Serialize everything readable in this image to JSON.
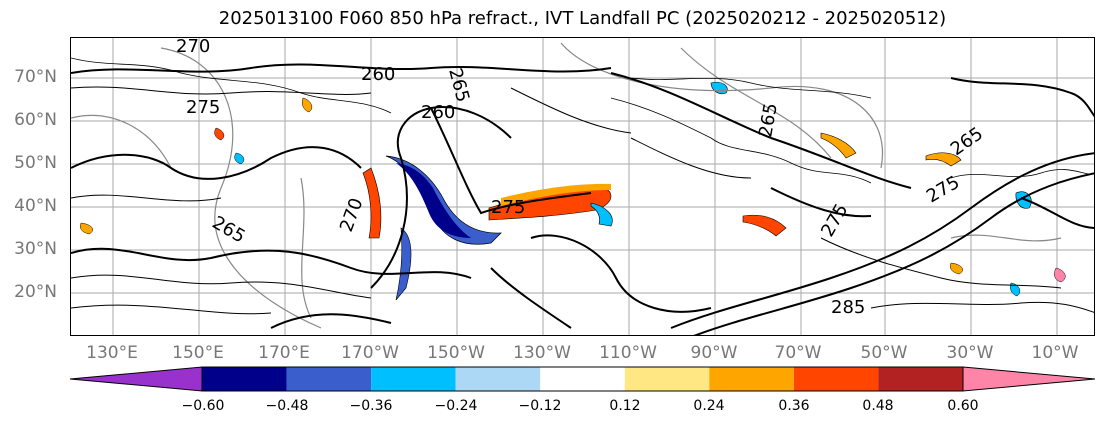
{
  "title": "2025013100 F060 850 hPa refract., IVT Landfall PC (2025020212 - 2025020512)",
  "lat_labels": [
    "70°N",
    "60°N",
    "50°N",
    "40°N",
    "30°N",
    "20°N"
  ],
  "lon_labels": [
    "130°E",
    "150°E",
    "170°E",
    "170°W",
    "150°W",
    "130°W",
    "110°W",
    "90°W",
    "70°W",
    "50°W",
    "30°W",
    "10°W"
  ],
  "colorbar": {
    "tick_labels": [
      "−0.60",
      "−0.48",
      "−0.36",
      "−0.24",
      "−0.12",
      "0.12",
      "0.24",
      "0.36",
      "0.48",
      "0.60"
    ],
    "colors": [
      "#9932CC",
      "#00008B",
      "#3A5FCD",
      "#00BFFF",
      "#ADD8F5",
      "#FFFFFF",
      "#FFE784",
      "#FFA500",
      "#FF4500",
      "#B22222",
      "#FF85A8"
    ]
  },
  "contour_labels": [
    "270",
    "260",
    "265",
    "275",
    "260",
    "265",
    "275",
    "270",
    "265",
    "275",
    "285",
    "265",
    "275"
  ],
  "shading_colors": {
    "neg_strong": "#00008B",
    "neg_mid": "#3A5FCD",
    "neg_light": "#00BFFF",
    "pos_light": "#FFA500",
    "pos_mid": "#FF4500",
    "pos_strong": "#B22222"
  }
}
